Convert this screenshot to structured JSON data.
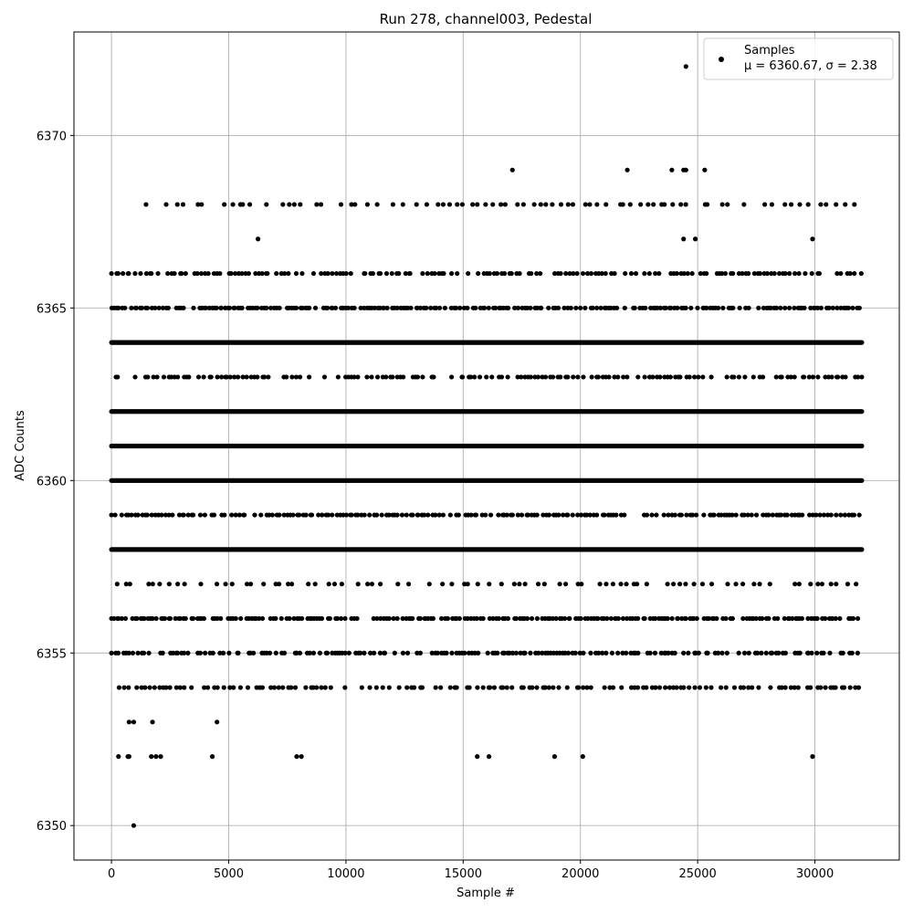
{
  "chart_data": {
    "type": "scatter",
    "title": "Run 278, channel003, Pedestal",
    "xlabel": "Sample #",
    "ylabel": "ADC Counts",
    "xlim": [
      -1600,
      33600
    ],
    "ylim": [
      6349,
      6373
    ],
    "grid": true,
    "legend_position": "top-right",
    "marker_color": "#000000",
    "xticks": [
      0,
      5000,
      10000,
      15000,
      20000,
      25000,
      30000
    ],
    "xtick_labels": [
      "0",
      "5000",
      "10000",
      "15000",
      "20000",
      "25000",
      "30000"
    ],
    "yticks": [
      6350,
      6355,
      6360,
      6365,
      6370
    ],
    "ytick_labels": [
      "6350",
      "6355",
      "6360",
      "6365",
      "6370"
    ],
    "series": [
      {
        "name": "Samples",
        "stats_label": "μ = 6360.67, σ = 2.38",
        "dense_bands": [
          {
            "y": 6360,
            "x_start": 0,
            "x_end": 32000,
            "step": 40
          },
          {
            "y": 6361,
            "x_start": 0,
            "x_end": 32000,
            "step": 40
          },
          {
            "y": 6362,
            "x_start": 0,
            "x_end": 32000,
            "step": 40
          },
          {
            "y": 6364,
            "x_start": 0,
            "x_end": 32000,
            "step": 40
          },
          {
            "y": 6358,
            "x_start": 0,
            "x_end": 32000,
            "step": 40
          },
          {
            "y": 6365,
            "x_start": 0,
            "x_end": 32000,
            "step": 110
          },
          {
            "y": 6356,
            "x_start": 0,
            "x_end": 32000,
            "step": 110
          },
          {
            "y": 6355,
            "x_start": 0,
            "x_end": 32000,
            "step": 130
          },
          {
            "y": 6359,
            "x_start": 0,
            "x_end": 32000,
            "step": 130
          },
          {
            "y": 6363,
            "x_start": 0,
            "x_end": 32000,
            "step": 160
          },
          {
            "y": 6366,
            "x_start": 0,
            "x_end": 32000,
            "step": 160
          },
          {
            "y": 6354,
            "x_start": 0,
            "x_end": 32000,
            "step": 180
          },
          {
            "y": 6357,
            "x_start": 0,
            "x_end": 32000,
            "step": 300
          },
          {
            "y": 6368,
            "x_start": 1200,
            "x_end": 32000,
            "step": 300
          }
        ],
        "points": [
          {
            "x": 950,
            "y": 6350
          },
          {
            "x": 300,
            "y": 6352
          },
          {
            "x": 700,
            "y": 6352
          },
          {
            "x": 750,
            "y": 6352
          },
          {
            "x": 1700,
            "y": 6352
          },
          {
            "x": 1900,
            "y": 6352
          },
          {
            "x": 2100,
            "y": 6352
          },
          {
            "x": 4300,
            "y": 6352
          },
          {
            "x": 7900,
            "y": 6352
          },
          {
            "x": 8100,
            "y": 6352
          },
          {
            "x": 15600,
            "y": 6352
          },
          {
            "x": 16100,
            "y": 6352
          },
          {
            "x": 18900,
            "y": 6352
          },
          {
            "x": 20100,
            "y": 6352
          },
          {
            "x": 29900,
            "y": 6352
          },
          {
            "x": 750,
            "y": 6353
          },
          {
            "x": 950,
            "y": 6353
          },
          {
            "x": 1750,
            "y": 6353
          },
          {
            "x": 4500,
            "y": 6353
          },
          {
            "x": 6250,
            "y": 6367
          },
          {
            "x": 24400,
            "y": 6367
          },
          {
            "x": 24900,
            "y": 6367
          },
          {
            "x": 29900,
            "y": 6367
          },
          {
            "x": 17100,
            "y": 6369
          },
          {
            "x": 22000,
            "y": 6369
          },
          {
            "x": 23900,
            "y": 6369
          },
          {
            "x": 24400,
            "y": 6369
          },
          {
            "x": 24500,
            "y": 6369
          },
          {
            "x": 25300,
            "y": 6369
          },
          {
            "x": 24500,
            "y": 6372
          }
        ]
      }
    ]
  }
}
